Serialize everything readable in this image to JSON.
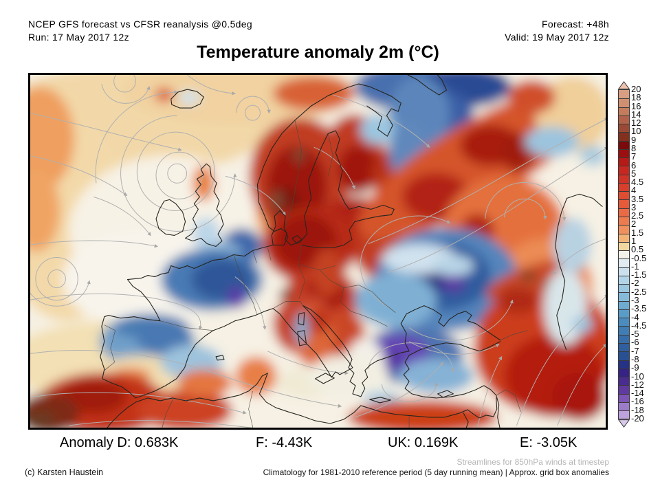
{
  "header": {
    "model_line": "NCEP GFS forecast vs CFSR reanalysis @0.5deg",
    "run_line": "Run: 17 May 2017 12z",
    "forecast_line": "Forecast: +48h",
    "valid_line": "Valid: 19 May 2017 12z"
  },
  "title": "Temperature anomaly 2m (°C)",
  "anomaly_summary": {
    "germany": "Anomaly D: 0.683K",
    "france": "F: -4.43K",
    "uk": "UK: 0.169K",
    "spain": "E: -3.05K"
  },
  "footer": {
    "copyright": "(c) Karsten Haustein",
    "streamlines_note": "Streamlines for 850hPa winds at timestep",
    "climatology_note": "Climatology for 1981-2010 reference period (5 day running mean) | Approx. grid box anomalies"
  },
  "colorbar": {
    "unit": "°C",
    "top_arrow_color": "#efc2ad",
    "bottom_arrow_color": "#dac8ec",
    "boundaries": [
      "20",
      "18",
      "16",
      "14",
      "12",
      "10",
      "9",
      "8",
      "7",
      "6",
      "5",
      "4.5",
      "4",
      "3.5",
      "3",
      "2.5",
      "2",
      "1.5",
      "1",
      "0.5",
      "-0.5",
      "-1",
      "-1.5",
      "-2",
      "-2.5",
      "-3",
      "-3.5",
      "-4",
      "-4.5",
      "-5",
      "-6",
      "-7",
      "-8",
      "-9",
      "-10",
      "-12",
      "-14",
      "-16",
      "-18",
      "-20"
    ],
    "colors": [
      "#d99e82",
      "#d08f70",
      "#c47c5c",
      "#b2624a",
      "#9a4a34",
      "#83301e",
      "#7c0a0a",
      "#9c0f10",
      "#b51a16",
      "#c62821",
      "#cf3226",
      "#d73e2b",
      "#de4c31",
      "#e45a3a",
      "#e96a45",
      "#ed7b50",
      "#f0905e",
      "#f3b377",
      "#f2d89e",
      "#f3f2ea",
      "#e0ebf2",
      "#cae0ee",
      "#b2d4e8",
      "#9bc7e0",
      "#85bad9",
      "#6eabd1",
      "#5a9cc8",
      "#4a8cbe",
      "#407db4",
      "#376ea9",
      "#2f5f9e",
      "#2a5094",
      "#253285",
      "#372383",
      "#4a2b90",
      "#613aa0",
      "#7d55b4",
      "#9c7bc8",
      "#bda2dc"
    ]
  }
}
